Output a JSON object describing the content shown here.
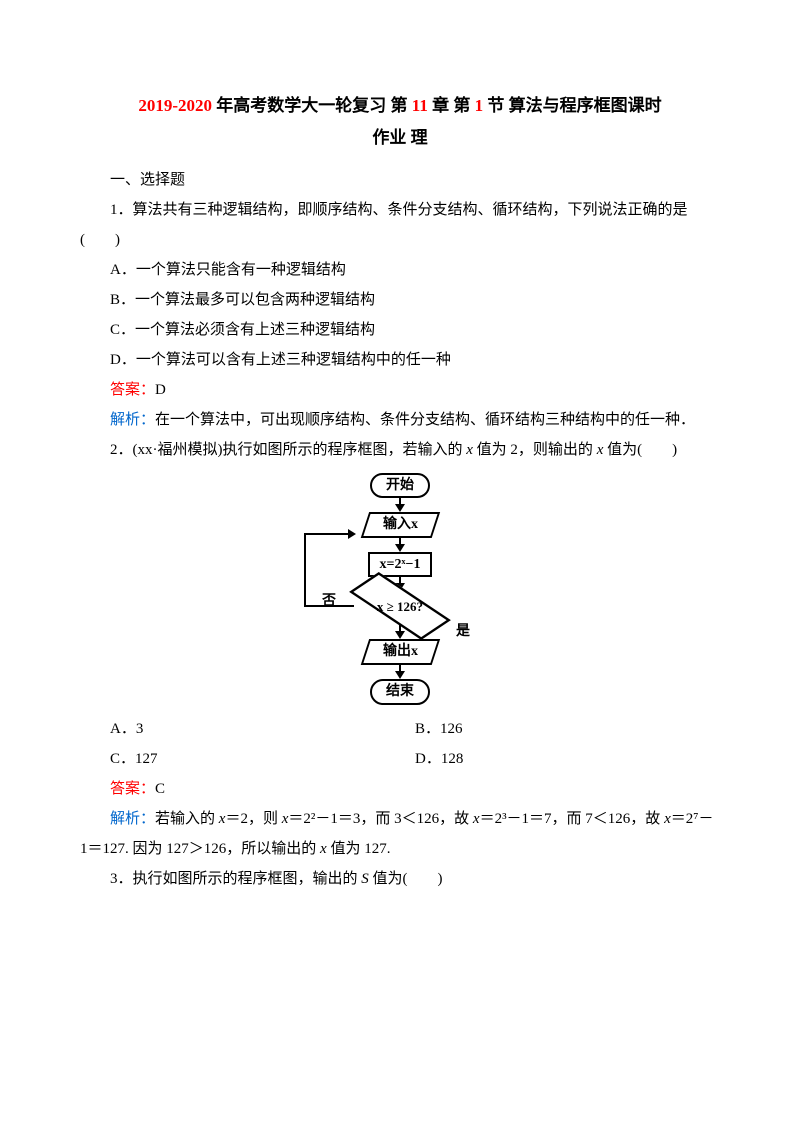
{
  "title": {
    "red_prefix": "2019-2020 ",
    "black_part1": "年高考数学大一轮复习 第 ",
    "red_ch": "11 ",
    "black_part2": "章 第 ",
    "red_sec": "1 ",
    "black_part3": "节 算法与程序框图课时",
    "line2": "作业 理"
  },
  "section1": "一、选择题",
  "q1": {
    "stem": "1．算法共有三种逻辑结构，即顺序结构、条件分支结构、循环结构，下列说法正确的是(　　)",
    "optA": "A．一个算法只能含有一种逻辑结构",
    "optB": "B．一个算法最多可以包含两种逻辑结构",
    "optC": "C．一个算法必须含有上述三种逻辑结构",
    "optD": "D．一个算法可以含有上述三种逻辑结构中的任一种",
    "answer_label": "答案：",
    "answer": "D",
    "analysis_label": "解析：",
    "analysis": "在一个算法中，可出现顺序结构、条件分支结构、循环结构三种结构中的任一种．"
  },
  "q2": {
    "stem_a": "2．(xx·福州模拟)执行如图所示的程序框图，若输入的 ",
    "stem_var1": "x",
    "stem_b": " 值为 2，则输出的 ",
    "stem_var2": "x",
    "stem_c": " 值为(　　)",
    "flow": {
      "start": "开始",
      "input": "输入x",
      "process": "x=2ˣ−1",
      "decision": "x ≥ 126?",
      "no": "否",
      "yes": "是",
      "output": "输出x",
      "end": "结束"
    },
    "optA": "A．3",
    "optB": "B．126",
    "optC": "C．127",
    "optD": "D．128",
    "answer_label": "答案：",
    "answer": "C",
    "analysis_label": "解析：",
    "analysis_a": "若输入的 ",
    "analysis_b": "＝2，则 ",
    "analysis_c": "＝2²－1＝3，而 3＜126，故 ",
    "analysis_d": "＝2³－1＝7，而 7＜126，故 ",
    "analysis_e": "＝2⁷－1＝127. 因为 127＞126，所以输出的 ",
    "analysis_f": " 值为 127.",
    "x": "x"
  },
  "q3": {
    "stem_a": "3．执行如图所示的程序框图，输出的 ",
    "stem_var": "S",
    "stem_b": " 值为(　　)"
  }
}
